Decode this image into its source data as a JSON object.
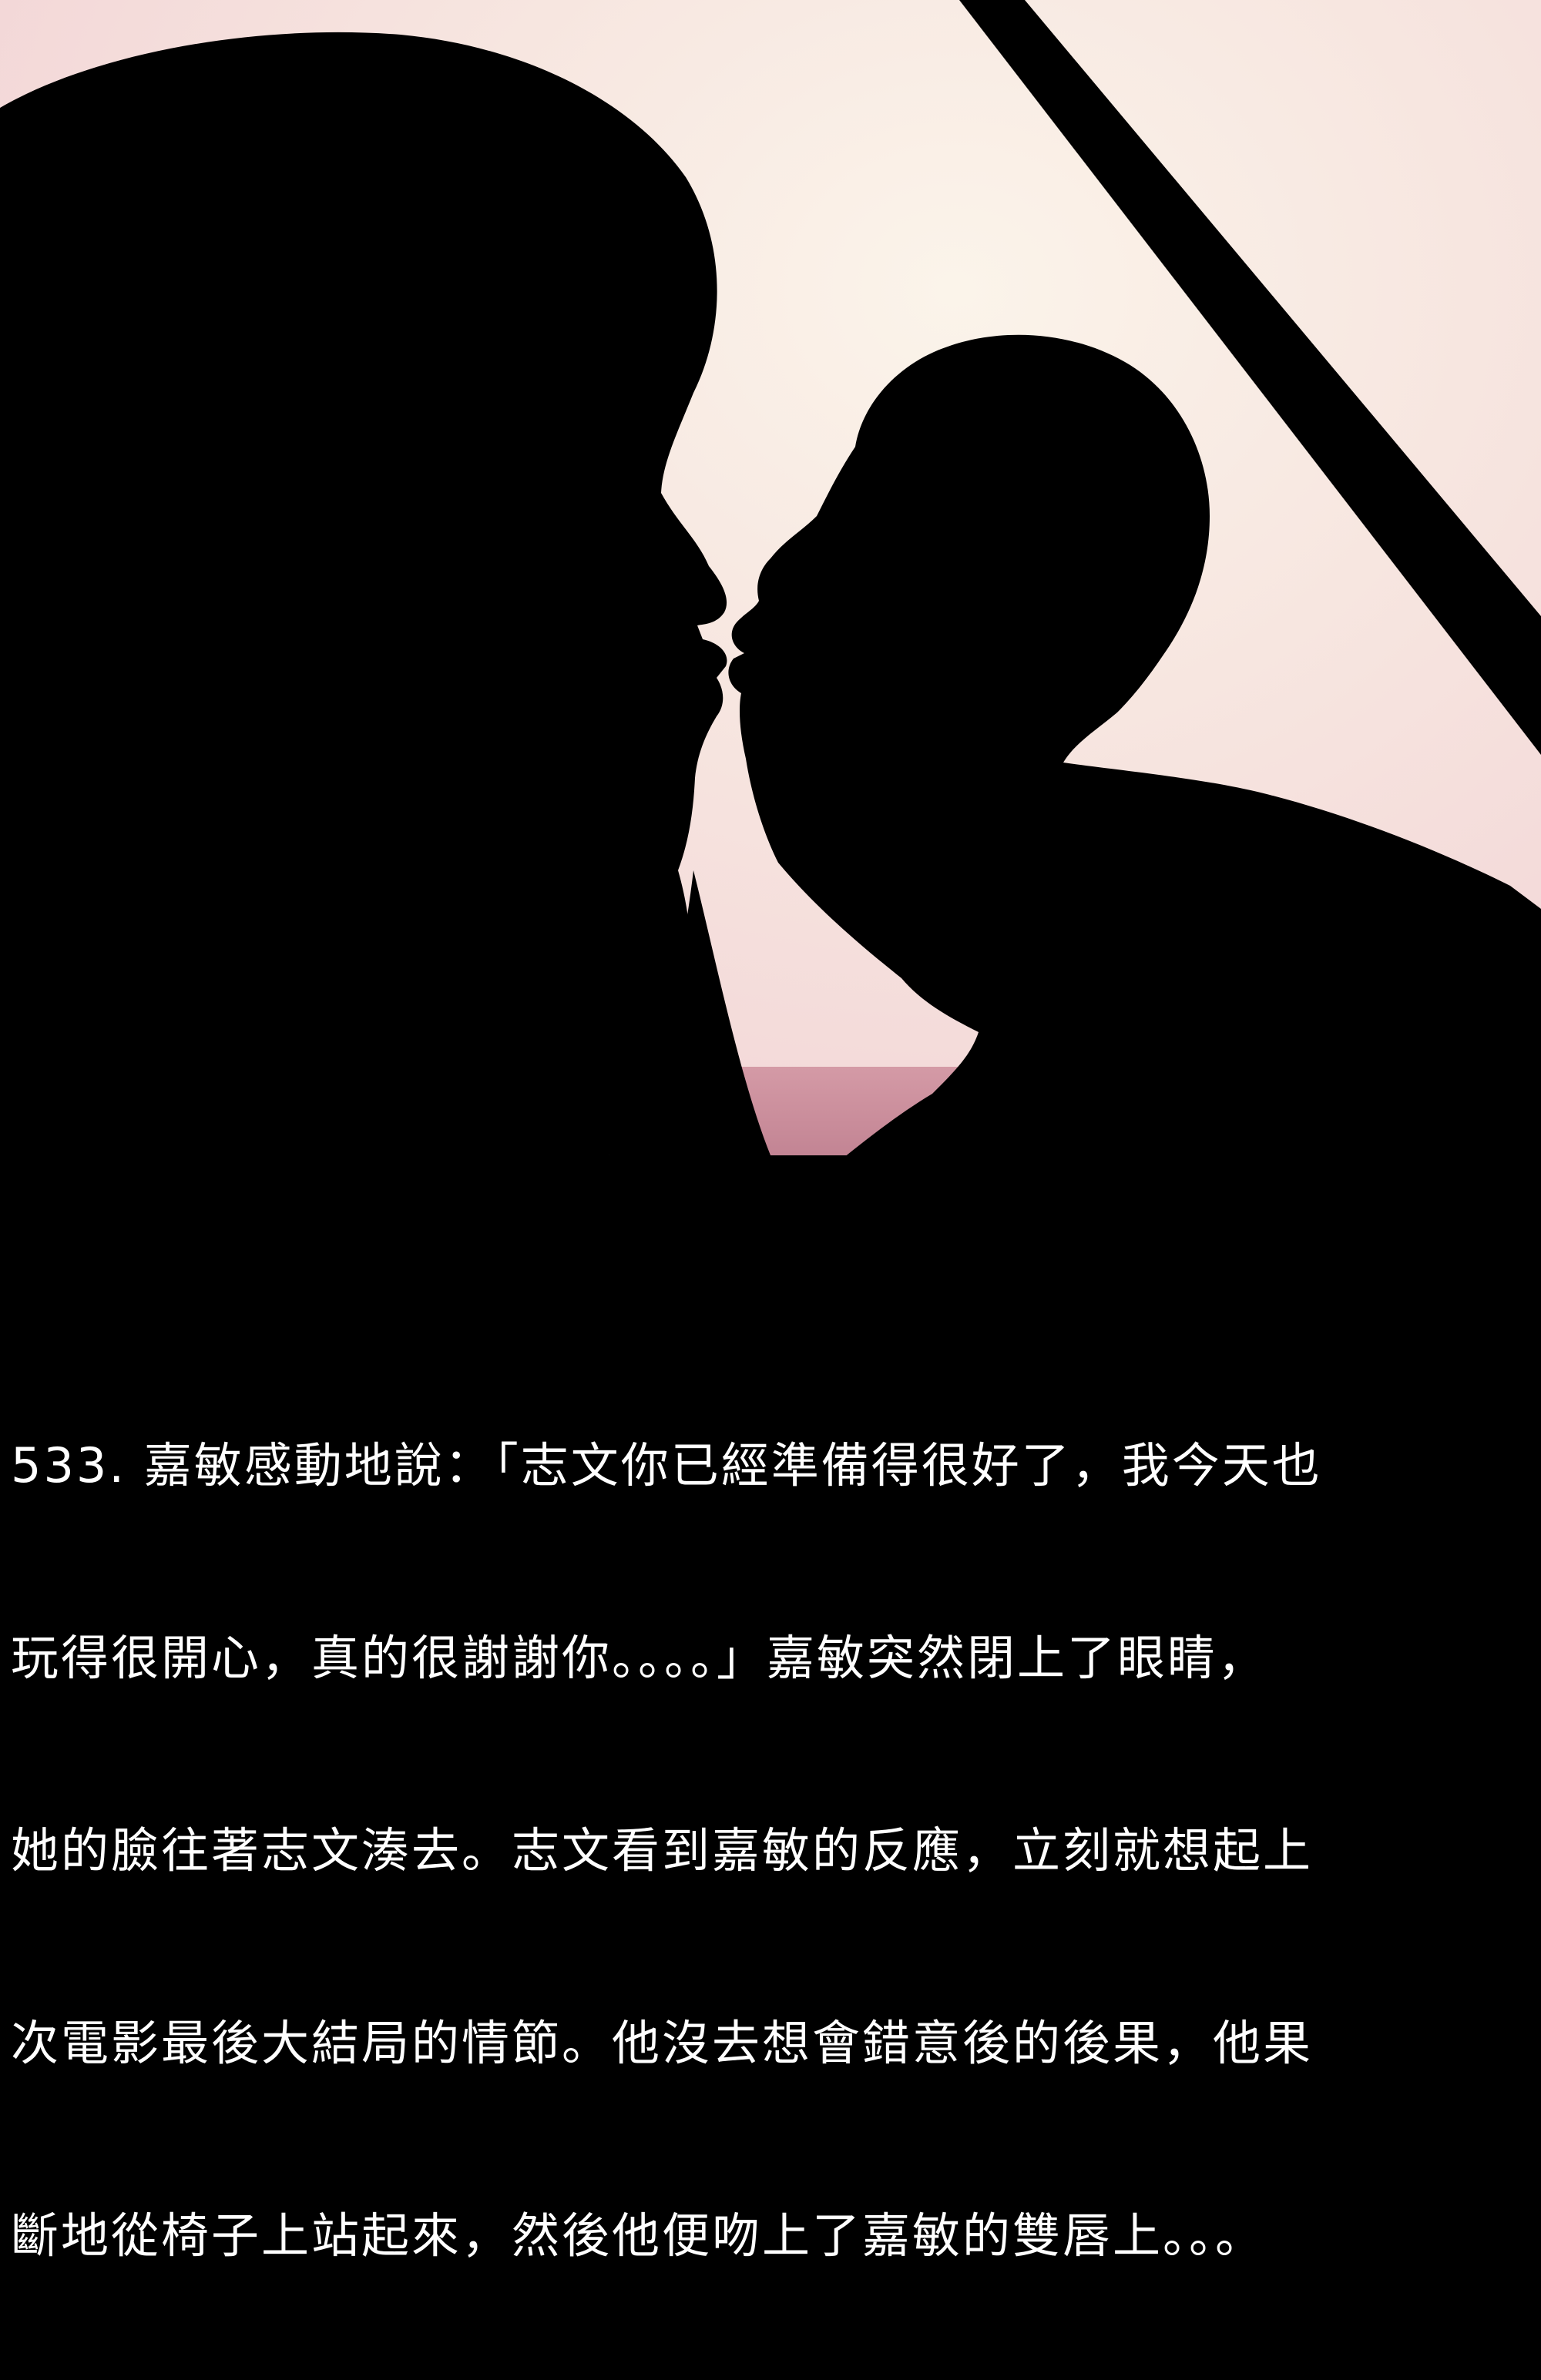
{
  "colors": {
    "sky_top": "#f6dcdc",
    "sky_glow": "#fbf3ec",
    "sky_mid": "#f5e4e2",
    "sea": "#c98a98",
    "sea_dark": "#b06a7c",
    "silhouette": "#000000",
    "text": "#ffffff",
    "background": "#000000"
  },
  "caption": {
    "lines": [
      "533. 嘉敏感動地說：「志文你已經準備得很好了，我今天也",
      "玩得很開心，真的很謝謝你。。。。」嘉敏突然閉上了眼睛，",
      "她的臉往著志文湊去。志文看到嘉敏的反應，立刻就想起上",
      "次電影最後大結局的情節。他沒去想會錯意後的後果，他果",
      "斷地從椅子上站起來，然後他便吻上了嘉敏的雙唇上。。。"
    ]
  }
}
